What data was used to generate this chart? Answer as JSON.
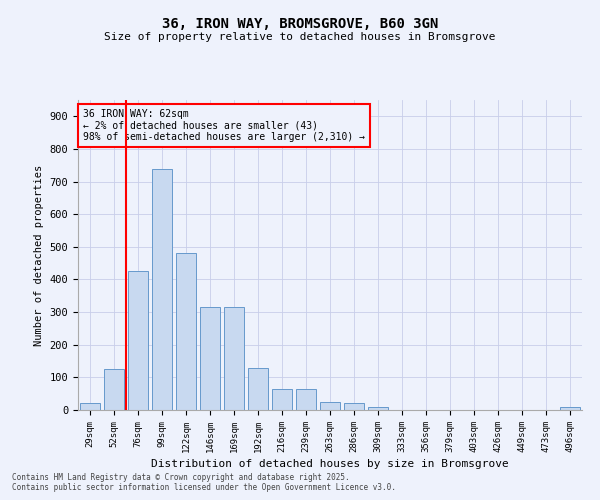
{
  "title1": "36, IRON WAY, BROMSGROVE, B60 3GN",
  "title2": "Size of property relative to detached houses in Bromsgrove",
  "xlabel": "Distribution of detached houses by size in Bromsgrove",
  "ylabel": "Number of detached properties",
  "categories": [
    "29sqm",
    "52sqm",
    "76sqm",
    "99sqm",
    "122sqm",
    "146sqm",
    "169sqm",
    "192sqm",
    "216sqm",
    "239sqm",
    "263sqm",
    "286sqm",
    "309sqm",
    "333sqm",
    "356sqm",
    "379sqm",
    "403sqm",
    "426sqm",
    "449sqm",
    "473sqm",
    "496sqm"
  ],
  "values": [
    20,
    125,
    425,
    740,
    480,
    315,
    315,
    130,
    65,
    65,
    25,
    20,
    10,
    0,
    0,
    0,
    0,
    0,
    0,
    0,
    10
  ],
  "bar_color": "#c8d9f0",
  "bar_edge_color": "#6699cc",
  "vline_x": 1.5,
  "vline_color": "red",
  "annotation_text": "36 IRON WAY: 62sqm\n← 2% of detached houses are smaller (43)\n98% of semi-detached houses are larger (2,310) →",
  "annotation_box_color": "red",
  "ylim": [
    0,
    950
  ],
  "yticks": [
    0,
    100,
    200,
    300,
    400,
    500,
    600,
    700,
    800,
    900
  ],
  "background_color": "#eef2fc",
  "grid_color": "#c8ceea",
  "footer1": "Contains HM Land Registry data © Crown copyright and database right 2025.",
  "footer2": "Contains public sector information licensed under the Open Government Licence v3.0."
}
